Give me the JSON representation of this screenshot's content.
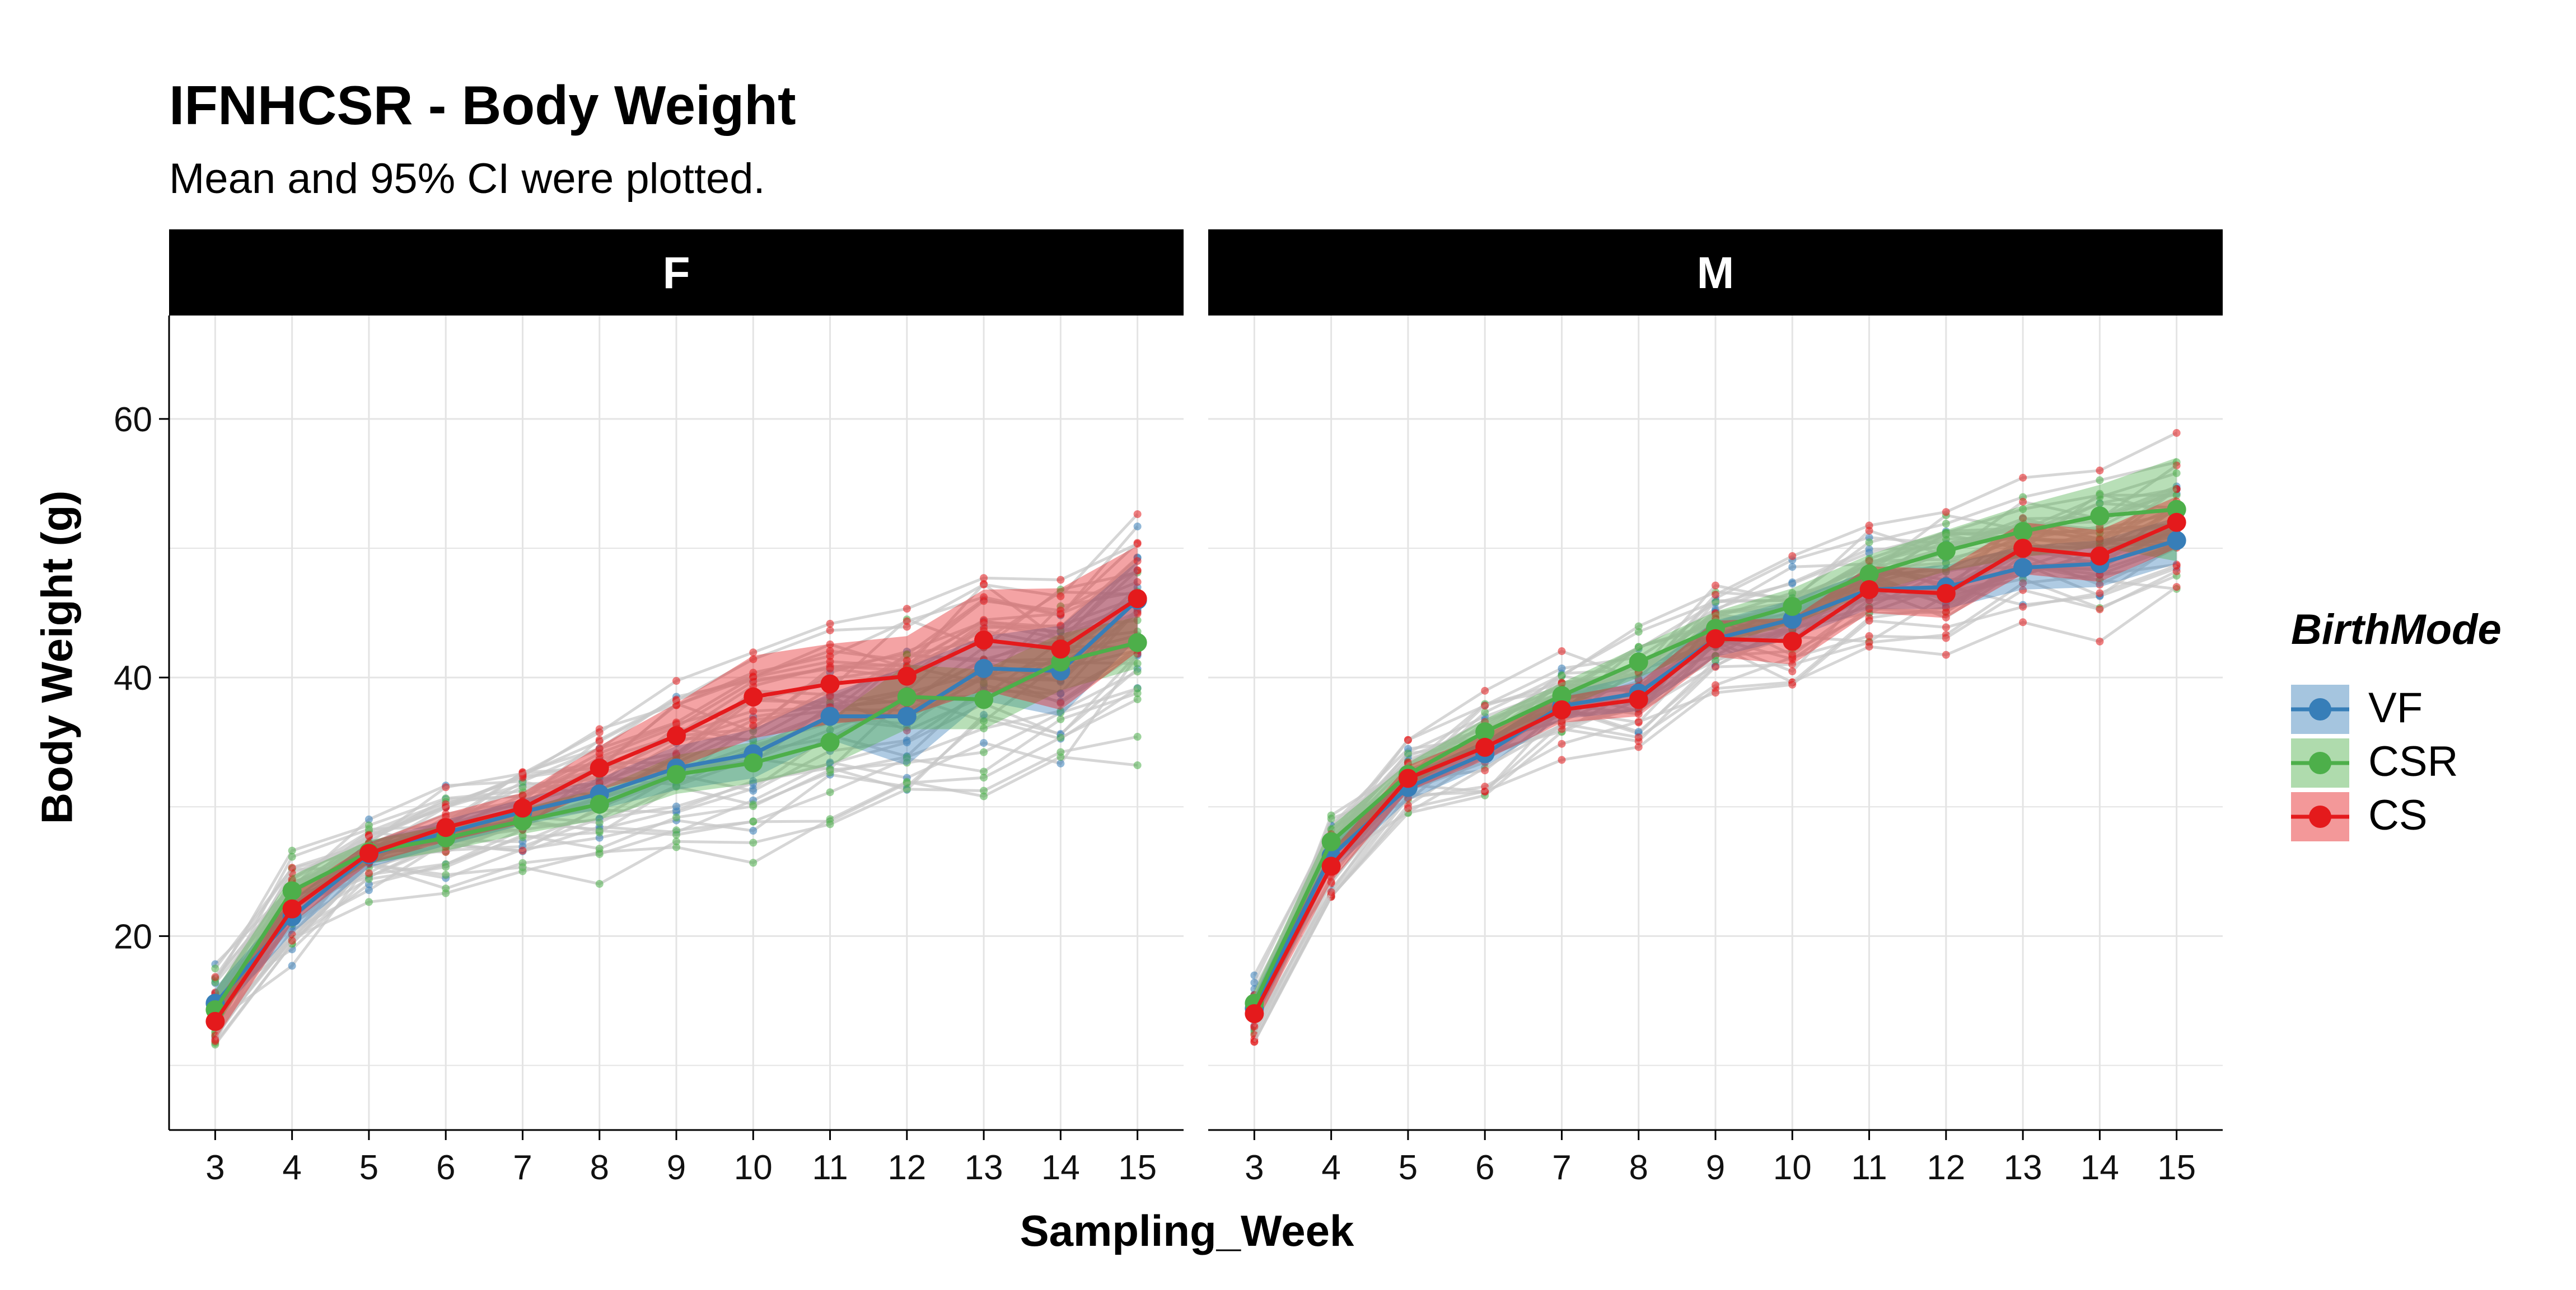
{
  "chart_data": {
    "type": "line",
    "title": "IFNHCSR - Body Weight",
    "subtitle": "Mean and 95% CI were plotted.",
    "xlabel": "Sampling_Week",
    "ylabel": "Body Weight (g)",
    "x": [
      3,
      4,
      5,
      6,
      7,
      8,
      9,
      10,
      11,
      12,
      13,
      14,
      15
    ],
    "xlim": [
      2.4,
      15.6
    ],
    "ylim": [
      5,
      68
    ],
    "yticks": [
      20,
      40,
      60
    ],
    "grid": true,
    "legend": {
      "title": "BirthMode",
      "placement": "right",
      "entries": [
        "VF",
        "CSR",
        "CS"
      ]
    },
    "colors": {
      "VF": "#377eb8",
      "CSR": "#4daf4a",
      "CS": "#e41a1c",
      "individual": "#c8c8c8",
      "strip": "#000000"
    },
    "facets": [
      {
        "label": "F",
        "series": [
          {
            "name": "VF",
            "mean": [
              14.8,
              21.5,
              26.3,
              28.0,
              29.6,
              31.0,
              33.0,
              34.1,
              37.0,
              37.0,
              40.7,
              40.5,
              46.0
            ],
            "lower": [
              13.6,
              20.2,
              25.3,
              27.0,
              28.6,
              29.8,
              31.3,
              32.2,
              35.2,
              33.2,
              38.2,
              37.0,
              43.0
            ],
            "upper": [
              16.0,
              22.8,
              27.3,
              29.0,
              30.6,
              32.2,
              34.7,
              36.0,
              38.8,
              40.8,
              43.2,
              44.0,
              49.0
            ]
          },
          {
            "name": "CSR",
            "mean": [
              14.3,
              23.5,
              26.5,
              27.6,
              28.9,
              30.2,
              32.5,
              33.4,
              35.0,
              38.5,
              38.3,
              41.2,
              42.7
            ],
            "lower": [
              12.8,
              22.3,
              25.6,
              26.6,
              27.9,
              29.0,
              31.0,
              31.8,
              33.2,
              36.0,
              36.0,
              39.0,
              40.7
            ],
            "upper": [
              15.8,
              24.7,
              27.4,
              28.6,
              29.9,
              31.4,
              34.0,
              35.0,
              36.8,
              41.0,
              40.6,
              43.4,
              44.7
            ]
          },
          {
            "name": "CS",
            "mean": [
              13.4,
              22.1,
              26.4,
              28.4,
              29.9,
              33.0,
              35.5,
              38.5,
              39.5,
              40.1,
              42.9,
              42.2,
              46.1
            ],
            "lower": [
              12.0,
              21.0,
              25.6,
              27.3,
              28.7,
              31.3,
              33.0,
              35.3,
              36.4,
              37.0,
              39.0,
              37.5,
              42.0
            ],
            "upper": [
              14.8,
              23.2,
              27.2,
              29.5,
              31.1,
              34.7,
              38.0,
              41.7,
              42.6,
              43.2,
              46.8,
              46.9,
              50.2
            ]
          }
        ]
      },
      {
        "label": "M",
        "series": [
          {
            "name": "VF",
            "mean": [
              14.4,
              26.2,
              31.5,
              34.1,
              37.8,
              38.8,
              43.0,
              44.5,
              46.8,
              47.0,
              48.5,
              48.8,
              50.6
            ],
            "lower": [
              13.4,
              25.0,
              30.5,
              33.1,
              36.8,
              37.4,
              41.6,
              43.0,
              45.3,
              45.3,
              46.8,
              47.0,
              48.8
            ],
            "upper": [
              15.4,
              27.4,
              32.5,
              35.1,
              38.8,
              40.2,
              44.4,
              46.0,
              48.3,
              48.7,
              50.2,
              50.6,
              52.4
            ]
          },
          {
            "name": "CSR",
            "mean": [
              14.8,
              27.3,
              32.5,
              35.8,
              38.6,
              41.2,
              43.8,
              45.5,
              48.0,
              49.8,
              51.3,
              52.5,
              53.0
            ],
            "lower": [
              13.8,
              26.1,
              31.6,
              34.8,
              37.6,
              40.0,
              42.5,
              44.1,
              46.5,
              48.2,
              49.3,
              50.1,
              49.0
            ],
            "upper": [
              15.8,
              28.5,
              33.4,
              36.8,
              39.6,
              42.4,
              45.1,
              46.9,
              49.5,
              51.4,
              53.3,
              54.9,
              57.0
            ]
          },
          {
            "name": "CS",
            "mean": [
              14.0,
              25.4,
              32.2,
              34.6,
              37.5,
              38.3,
              43.0,
              42.8,
              46.8,
              46.5,
              50.0,
              49.4,
              52.0
            ],
            "lower": [
              13.0,
              24.2,
              31.2,
              33.6,
              36.5,
              37.0,
              41.6,
              41.0,
              45.0,
              44.6,
              48.0,
              47.4,
              50.0
            ],
            "upper": [
              15.0,
              26.6,
              33.2,
              35.6,
              38.5,
              39.6,
              44.4,
              44.6,
              48.6,
              48.4,
              52.0,
              51.4,
              54.0
            ]
          }
        ]
      }
    ]
  }
}
